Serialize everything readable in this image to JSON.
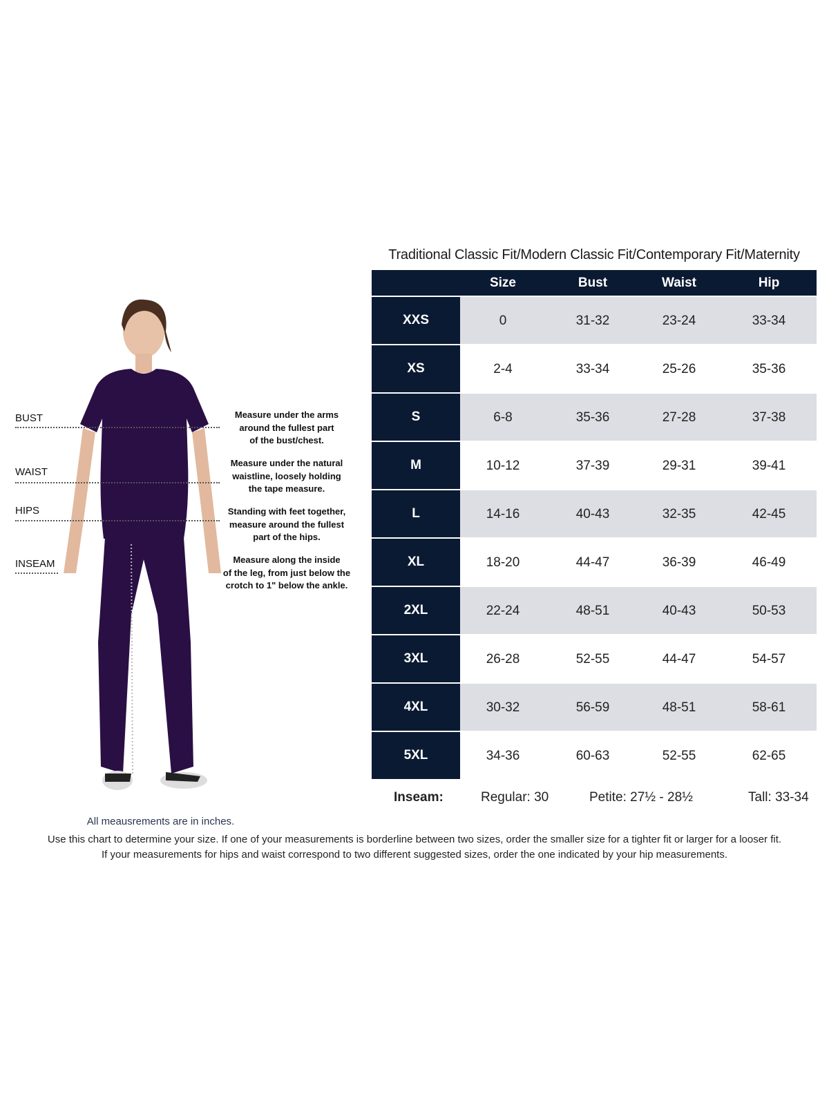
{
  "title": "Traditional Classic Fit/Modern Classic Fit/Contemporary Fit/Maternity",
  "columns": [
    "Size",
    "Bust",
    "Waist",
    "Hip"
  ],
  "rows": [
    {
      "label": "XXS",
      "size": "0",
      "bust": "31-32",
      "waist": "23-24",
      "hip": "33-34"
    },
    {
      "label": "XS",
      "size": "2-4",
      "bust": "33-34",
      "waist": "25-26",
      "hip": "35-36"
    },
    {
      "label": "S",
      "size": "6-8",
      "bust": "35-36",
      "waist": "27-28",
      "hip": "37-38"
    },
    {
      "label": "M",
      "size": "10-12",
      "bust": "37-39",
      "waist": "29-31",
      "hip": "39-41"
    },
    {
      "label": "L",
      "size": "14-16",
      "bust": "40-43",
      "waist": "32-35",
      "hip": "42-45"
    },
    {
      "label": "XL",
      "size": "18-20",
      "bust": "44-47",
      "waist": "36-39",
      "hip": "46-49"
    },
    {
      "label": "2XL",
      "size": "22-24",
      "bust": "48-51",
      "waist": "40-43",
      "hip": "50-53"
    },
    {
      "label": "3XL",
      "size": "26-28",
      "bust": "52-55",
      "waist": "44-47",
      "hip": "54-57"
    },
    {
      "label": "4XL",
      "size": "30-32",
      "bust": "56-59",
      "waist": "48-51",
      "hip": "58-61"
    },
    {
      "label": "5XL",
      "size": "34-36",
      "bust": "60-63",
      "waist": "52-55",
      "hip": "62-65"
    }
  ],
  "inseam": {
    "label": "Inseam:",
    "regular": "Regular: 30",
    "petite": "Petite: 27½ - 28½",
    "tall": "Tall: 33-34"
  },
  "measure_guide": [
    {
      "label": "BUST",
      "desc": [
        "Measure under the arms",
        "around the fullest part",
        "of the bust/chest."
      ]
    },
    {
      "label": "WAIST",
      "desc": [
        "Measure under the natural",
        "waistline, loosely holding",
        "the tape measure."
      ]
    },
    {
      "label": "HIPS",
      "desc": [
        "Standing with feet together,",
        "measure around the fullest",
        "part of the hips."
      ]
    },
    {
      "label": "INSEAM",
      "desc": [
        "Measure along the inside",
        "of the leg, from just below the",
        "crotch to 1\" below the ankle."
      ]
    }
  ],
  "units_note": "All meausrements are in inches.",
  "notes": [
    "Use this chart to determine your size. If one of your measurements is borderline between two sizes, order the smaller size for a tighter fit or larger for a looser fit.",
    "If your measurements for hips and waist correspond to two different suggested sizes, order the one indicated by your hip measurements."
  ],
  "colors": {
    "header": "#0b1a33",
    "alt_row": "#dcdee3",
    "scrubs": "#2a0f45"
  }
}
